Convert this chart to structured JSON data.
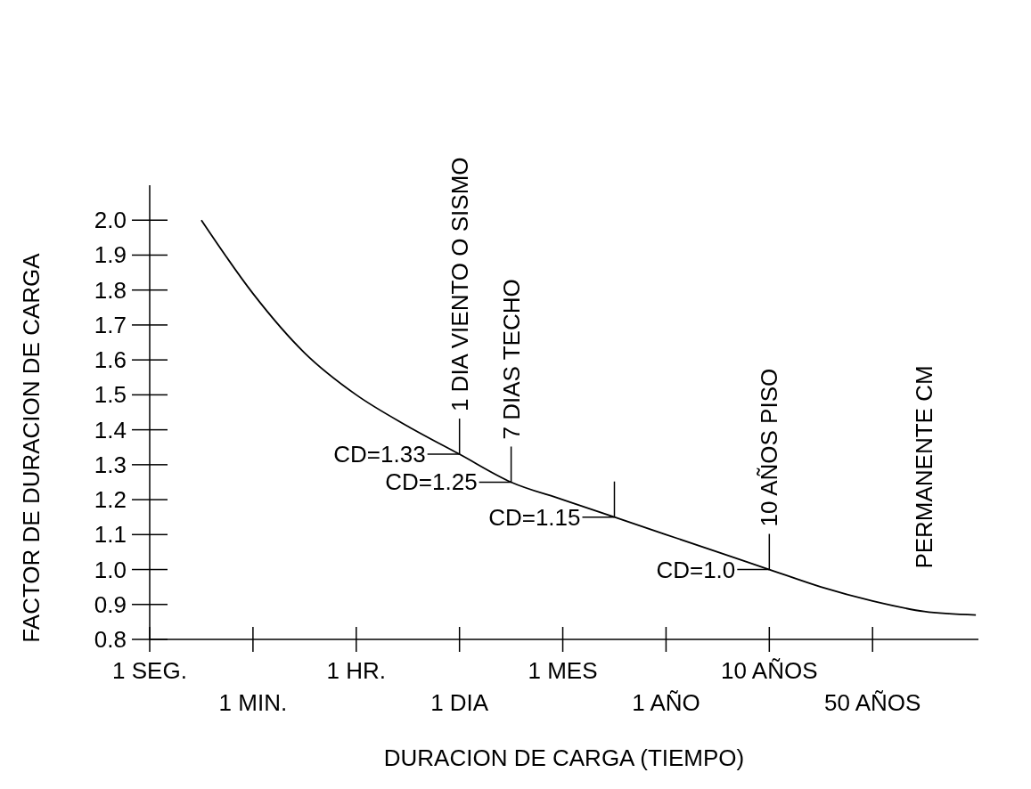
{
  "chart_data": {
    "type": "line",
    "xlabel": "DURACION DE CARGA (TIEMPO)",
    "ylabel": "FACTOR DE DURACION DE CARGA",
    "categories": [
      "1 SEG.",
      null,
      "1 MIN.",
      null,
      "1 HR.",
      null,
      "1 DIA",
      null,
      "1 MES",
      null,
      "1 AÑO",
      null,
      "10 AÑOS",
      null,
      "50 AÑOS",
      null,
      null
    ],
    "ylim": [
      0.8,
      2.1
    ],
    "yticks": [
      {
        "value": 0.8,
        "label": "0.8"
      },
      {
        "value": 0.9,
        "label": "0.9"
      },
      {
        "value": 1.0,
        "label": "1.0"
      },
      {
        "value": 1.1,
        "label": "1.1"
      },
      {
        "value": 1.2,
        "label": "1.2"
      },
      {
        "value": 1.3,
        "label": "1.3"
      },
      {
        "value": 1.4,
        "label": "1.4"
      },
      {
        "value": 1.5,
        "label": "1.5"
      },
      {
        "value": 1.6,
        "label": "1.6"
      },
      {
        "value": 1.7,
        "label": "1.7"
      },
      {
        "value": 1.8,
        "label": "1.8"
      },
      {
        "value": 1.9,
        "label": "1.9"
      },
      {
        "value": 2.0,
        "label": "2.0"
      }
    ],
    "series": [
      {
        "color": "#000000",
        "values": [
          null,
          2.0,
          1.79,
          1.62,
          1.5,
          1.41,
          1.33,
          1.25,
          1.2,
          1.15,
          1.1,
          1.05,
          1.0,
          0.95,
          0.91,
          0.88,
          0.87
        ]
      }
    ],
    "marker": "none",
    "line_style": "solid",
    "grid": false,
    "legend": false,
    "annotations": [
      {
        "text": "CD=1.33",
        "x": "1 DIA",
        "y": 1.33
      },
      {
        "text": "CD=1.0",
        "x": "10 AÑOS",
        "y": 1.0
      },
      {
        "text": "1 DIA VIENTO O SISMO",
        "x": "1 DIA",
        "y": 1.33
      },
      {
        "text": "10 AÑOS PISO",
        "x": "10 AÑOS",
        "y": 1.0
      },
      "CD=1.25",
      "CD=1.15",
      {
        "text": "7 DIAS TECHO",
        "y": 1.25
      },
      "PERMANENTE CM"
    ]
  }
}
